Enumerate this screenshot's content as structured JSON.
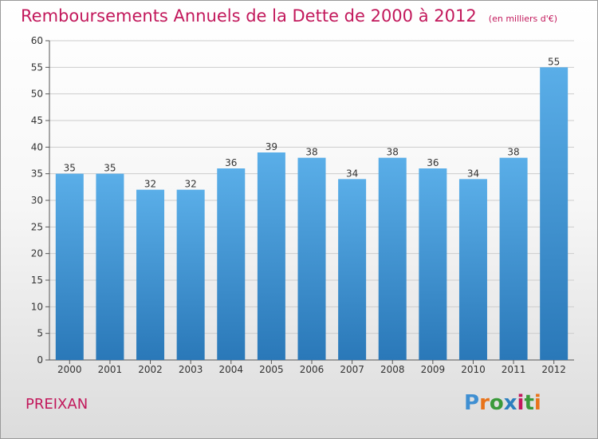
{
  "title": "Remboursements Annuels de la Dette de 2000 à 2012",
  "unit_note": "(en milliers d'€)",
  "commune": "PREIXAN",
  "logo": {
    "text": "Proxiti",
    "letters": [
      {
        "ch": "P",
        "color": "#3f8fd2"
      },
      {
        "ch": "r",
        "color": "#e8731a"
      },
      {
        "ch": "o",
        "color": "#3a9a3a"
      },
      {
        "ch": "x",
        "color": "#2c7fbf"
      },
      {
        "ch": "i",
        "color": "#c2185b"
      },
      {
        "ch": "t",
        "color": "#3a9a3a"
      },
      {
        "ch": "i",
        "color": "#e8731a"
      }
    ]
  },
  "colors": {
    "bar_light": "#5aaee8",
    "bar_dark": "#2a78b8",
    "title": "#c2185b",
    "grid": "#cccccc"
  },
  "chart_data": {
    "type": "bar",
    "title": "Remboursements Annuels de la Dette de 2000 à 2012",
    "xlabel": "",
    "ylabel": "",
    "categories": [
      "2000",
      "2001",
      "2002",
      "2003",
      "2004",
      "2005",
      "2006",
      "2007",
      "2008",
      "2009",
      "2010",
      "2011",
      "2012"
    ],
    "values": [
      35,
      35,
      32,
      32,
      36,
      39,
      38,
      34,
      38,
      36,
      34,
      38,
      55
    ],
    "ylim": [
      0,
      60
    ],
    "yticks": [
      0,
      5,
      10,
      15,
      20,
      25,
      30,
      35,
      40,
      45,
      50,
      55,
      60
    ],
    "grid": true
  }
}
